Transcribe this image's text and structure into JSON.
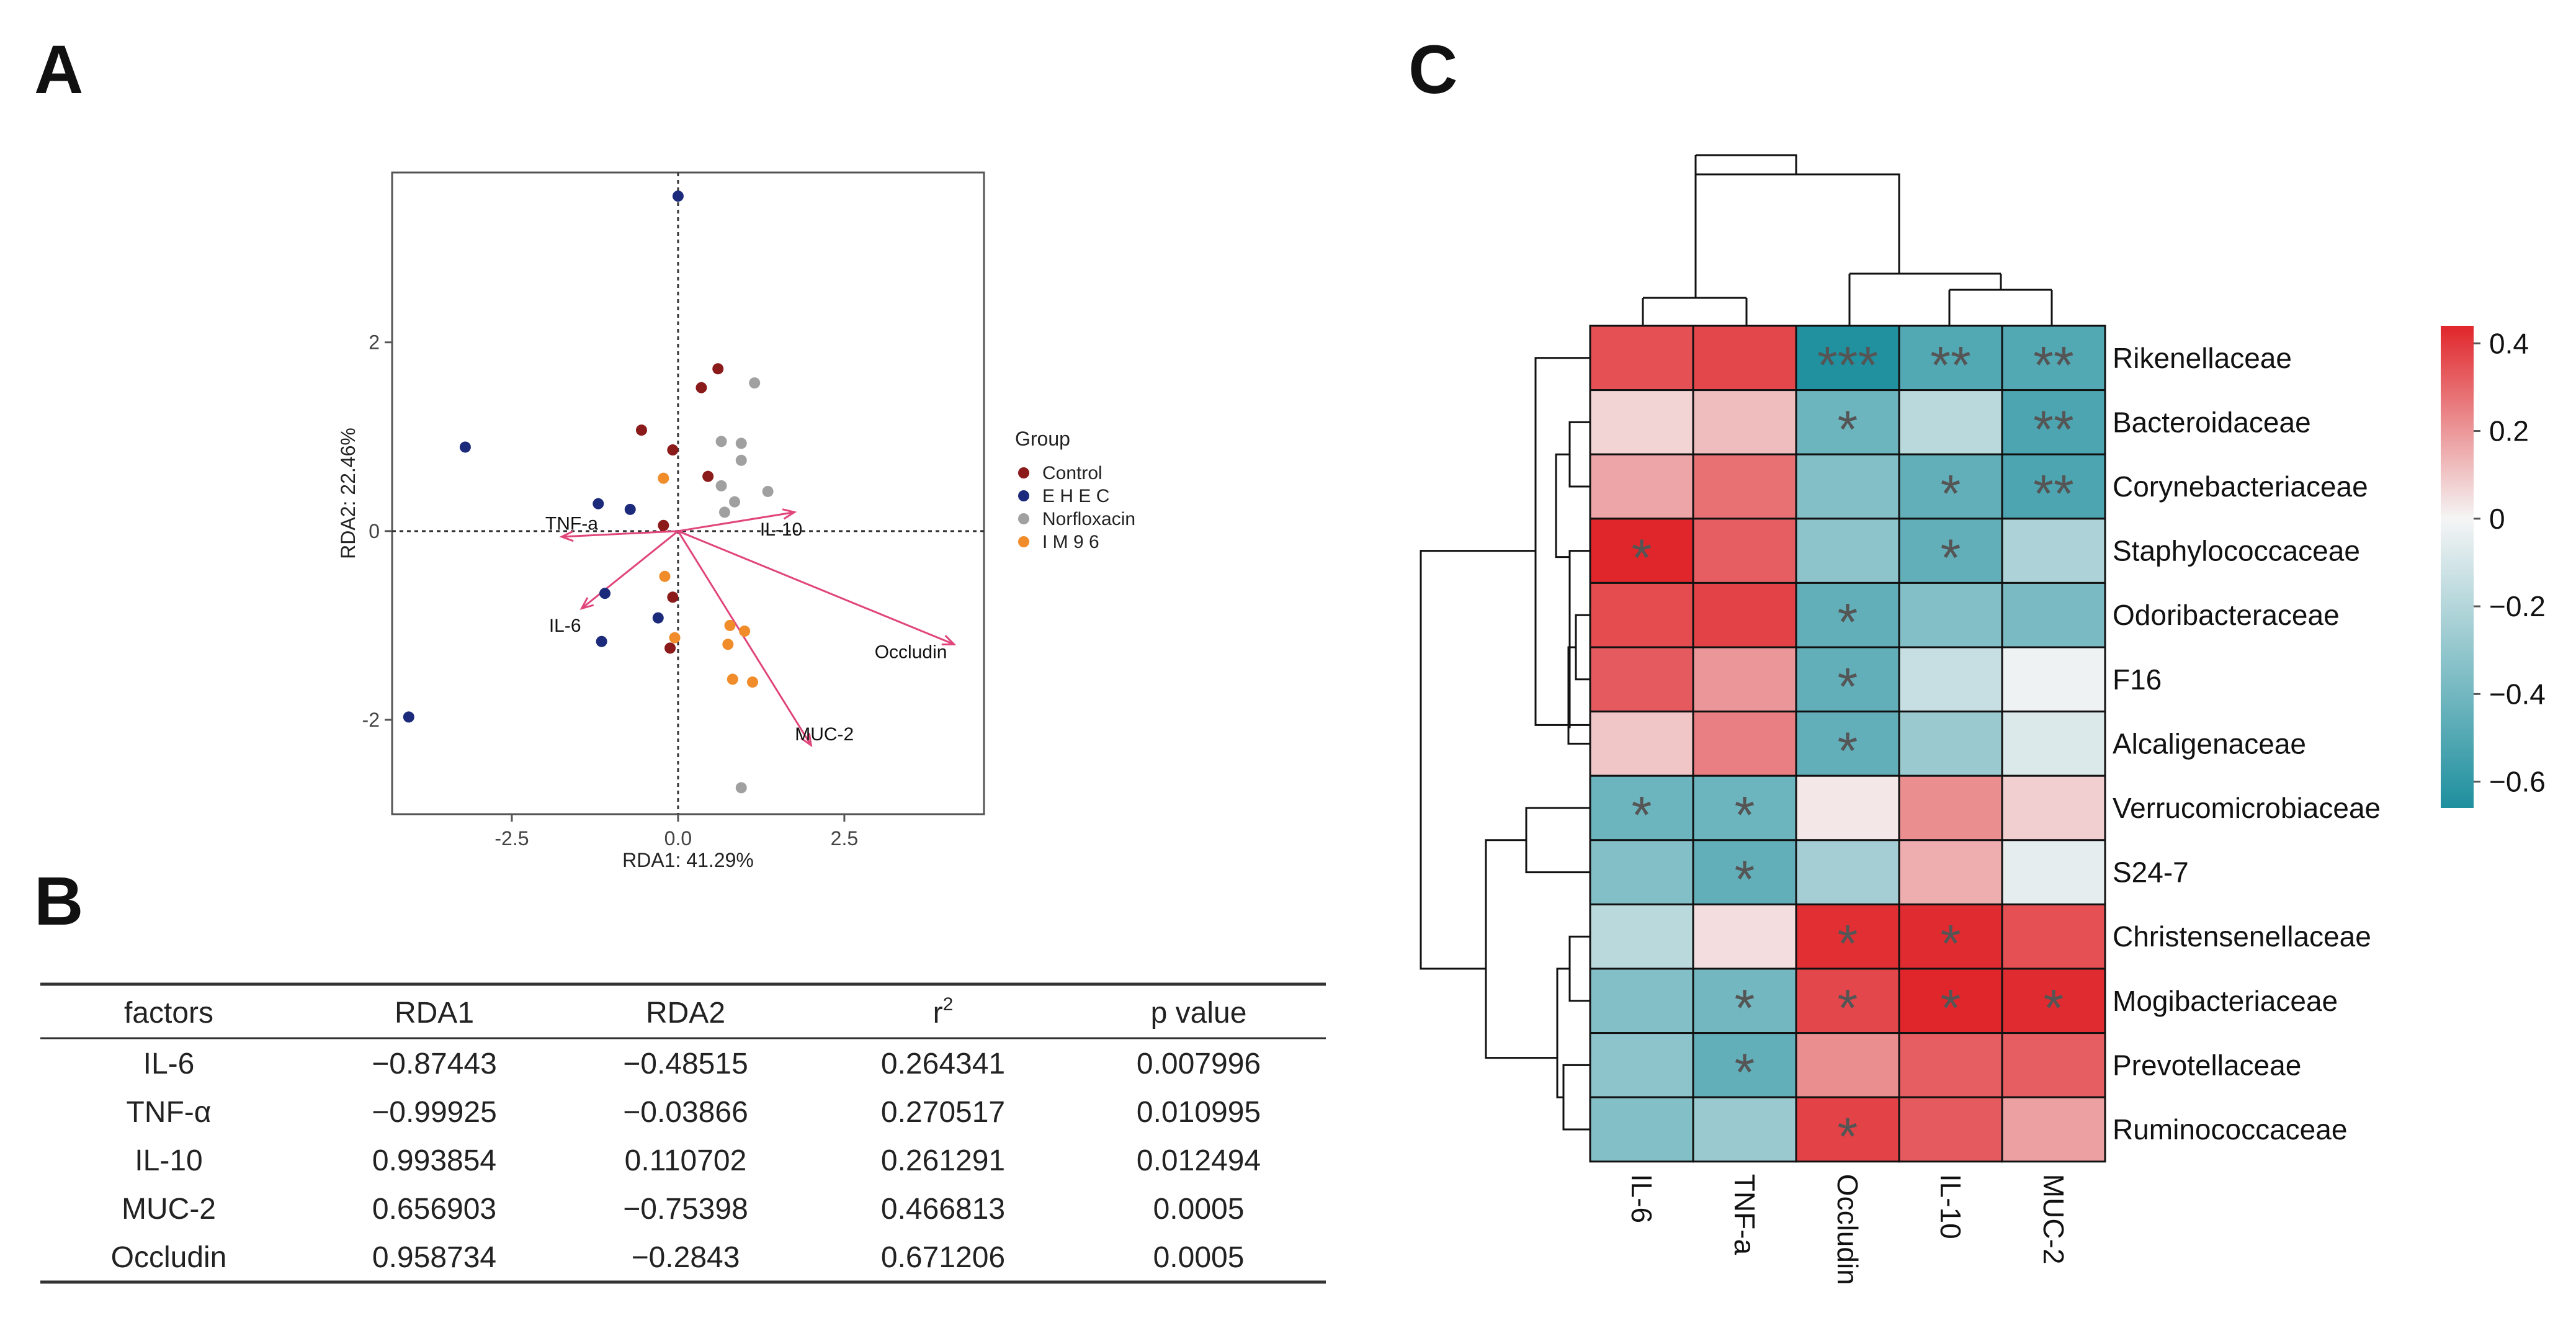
{
  "panels": {
    "A": {
      "label": "A"
    },
    "B": {
      "label": "B"
    },
    "C": {
      "label": "C"
    }
  },
  "chart_data": [
    {
      "type": "scatter",
      "panel": "A",
      "xlabel": "RDA1: 41.29%",
      "ylabel": "RDA2: 22.46%",
      "xlim": [
        -4.3,
        4.6
      ],
      "ylim": [
        -3.0,
        3.8
      ],
      "x_ticks": [
        -2.5,
        0.0,
        2.5
      ],
      "x_tick_labels": [
        "-2.5",
        "0.0",
        "2.5"
      ],
      "y_ticks": [
        -2,
        0,
        2
      ],
      "y_tick_labels": [
        "-2",
        "0",
        "2"
      ],
      "legend": {
        "title": "Group",
        "position": "right",
        "entries": [
          {
            "name": "Control",
            "color": "#8B1A1A"
          },
          {
            "name": "E H E C",
            "color": "#1B2A7A"
          },
          {
            "name": "Norfloxacin",
            "color": "#A0A0A0"
          },
          {
            "name": "I M 9 6",
            "color": "#F08C2A"
          }
        ]
      },
      "arrow_color": "#E0457B",
      "series": [
        {
          "name": "Control",
          "points": [
            [
              0.6,
              1.72
            ],
            [
              0.35,
              1.52
            ],
            [
              -0.55,
              1.07
            ],
            [
              -0.08,
              0.86
            ],
            [
              0.45,
              0.58
            ],
            [
              -0.22,
              0.06
            ],
            [
              -0.08,
              -0.7
            ],
            [
              -0.12,
              -1.24
            ]
          ]
        },
        {
          "name": "E H E C",
          "points": [
            [
              0.0,
              3.55
            ],
            [
              -3.2,
              0.89
            ],
            [
              -1.2,
              0.29
            ],
            [
              -0.72,
              0.23
            ],
            [
              -1.1,
              -0.66
            ],
            [
              -0.3,
              -0.92
            ],
            [
              -1.15,
              -1.17
            ],
            [
              -4.05,
              -1.97
            ]
          ]
        },
        {
          "name": "Norfloxacin",
          "points": [
            [
              1.15,
              1.57
            ],
            [
              0.65,
              0.95
            ],
            [
              0.95,
              0.93
            ],
            [
              0.95,
              0.75
            ],
            [
              0.65,
              0.48
            ],
            [
              1.35,
              0.42
            ],
            [
              0.85,
              0.31
            ],
            [
              0.7,
              0.2
            ],
            [
              0.95,
              -2.72
            ]
          ]
        },
        {
          "name": "I M 9 6",
          "points": [
            [
              -0.22,
              0.56
            ],
            [
              -0.2,
              -0.48
            ],
            [
              0.78,
              -1.0
            ],
            [
              1.0,
              -1.06
            ],
            [
              0.75,
              -1.2
            ],
            [
              -0.05,
              -1.13
            ],
            [
              0.82,
              -1.57
            ],
            [
              1.12,
              -1.6
            ]
          ]
        }
      ],
      "arrows": [
        {
          "name": "TNF-a",
          "end": [
            -1.75,
            -0.06
          ],
          "label_at": [
            -1.6,
            0.08
          ]
        },
        {
          "name": "IL-10",
          "end": [
            1.75,
            0.2
          ],
          "label_at": [
            1.55,
            0.02
          ]
        },
        {
          "name": "IL-6",
          "end": [
            -1.45,
            -0.82
          ],
          "label_at": [
            -1.7,
            -1.0
          ]
        },
        {
          "name": "Occludin",
          "end": [
            4.15,
            -1.2
          ],
          "label_at": [
            3.5,
            -1.28
          ]
        },
        {
          "name": "MUC-2",
          "end": [
            2.0,
            -2.27
          ],
          "label_at": [
            2.2,
            -2.15
          ]
        }
      ]
    },
    {
      "type": "table",
      "panel": "B",
      "columns": [
        "factors",
        "RDA1",
        "RDA2",
        "r",
        "p value"
      ],
      "r_superscript": "2",
      "rows": [
        [
          "IL-6",
          "−0.87443",
          "−0.48515",
          "0.264341",
          "0.007996"
        ],
        [
          "TNF-α",
          "−0.99925",
          "−0.03866",
          "0.270517",
          "0.010995"
        ],
        [
          "IL-10",
          "0.993854",
          "0.110702",
          "0.261291",
          "0.012494"
        ],
        [
          "MUC-2",
          "0.656903",
          "−0.75398",
          "0.466813",
          "0.0005"
        ],
        [
          "Occludin",
          "0.958734",
          "−0.2843",
          "0.671206",
          "0.0005"
        ]
      ]
    },
    {
      "type": "heatmap",
      "panel": "C",
      "columns": [
        "IL-6",
        "TNF-a",
        "Occludin",
        "IL-10",
        "MUC-2"
      ],
      "rows": [
        "Rikenellaceae",
        "Bacteroidaceae",
        "Corynebacteriaceae",
        "Staphylococcaceae",
        "Odoribacteraceae",
        "F16",
        "Alcaligenaceae",
        "Verrucomicrobiaceae",
        "S24-7",
        "Christensenellaceae",
        "Mogibacteriaceae",
        "Prevotellaceae",
        "Ruminococcaceae"
      ],
      "values": [
        [
          0.35,
          0.37,
          -0.65,
          -0.5,
          -0.5
        ],
        [
          0.07,
          0.12,
          -0.42,
          -0.18,
          -0.52
        ],
        [
          0.17,
          0.28,
          -0.35,
          -0.45,
          -0.52
        ],
        [
          0.44,
          0.32,
          -0.32,
          -0.45,
          -0.22
        ],
        [
          0.36,
          0.38,
          -0.45,
          -0.35,
          -0.38
        ],
        [
          0.33,
          0.2,
          -0.45,
          -0.14,
          -0.02
        ],
        [
          0.1,
          0.25,
          -0.45,
          -0.28,
          -0.08
        ],
        [
          -0.42,
          -0.42,
          0.03,
          0.22,
          0.08
        ],
        [
          -0.35,
          -0.45,
          -0.25,
          0.15,
          -0.05
        ],
        [
          -0.18,
          0.05,
          0.42,
          0.43,
          0.35
        ],
        [
          -0.35,
          -0.4,
          0.37,
          0.44,
          0.43
        ],
        [
          -0.32,
          -0.45,
          0.22,
          0.32,
          0.32
        ],
        [
          -0.35,
          -0.28,
          0.38,
          0.33,
          0.18
        ]
      ],
      "stars": [
        [
          "",
          "",
          "***",
          "**",
          "**"
        ],
        [
          "",
          "",
          "*",
          "",
          "**"
        ],
        [
          "",
          "",
          "",
          "*",
          "**"
        ],
        [
          "*",
          "",
          "",
          "*",
          ""
        ],
        [
          "",
          "",
          "*",
          "",
          ""
        ],
        [
          "",
          "",
          "*",
          "",
          ""
        ],
        [
          "",
          "",
          "*",
          "",
          ""
        ],
        [
          "*",
          "*",
          "",
          "",
          ""
        ],
        [
          "",
          "*",
          "",
          "",
          ""
        ],
        [
          "",
          "",
          "*",
          "*",
          ""
        ],
        [
          "",
          "*",
          "*",
          "*",
          "*"
        ],
        [
          "",
          "*",
          "",
          "",
          ""
        ],
        [
          "",
          "",
          "*",
          "",
          ""
        ]
      ],
      "colorbar": {
        "range": [
          -0.66,
          0.44
        ],
        "ticks": [
          0.4,
          0.2,
          0,
          -0.2,
          -0.4,
          -0.6
        ],
        "tick_labels": [
          "0.4",
          "0.2",
          "0",
          "−0.2",
          "−0.4",
          "−0.6"
        ],
        "colors": {
          "negative": "#1E8F9E",
          "mid": "#F5F5F5",
          "positive": "#E0262B"
        }
      }
    }
  ]
}
